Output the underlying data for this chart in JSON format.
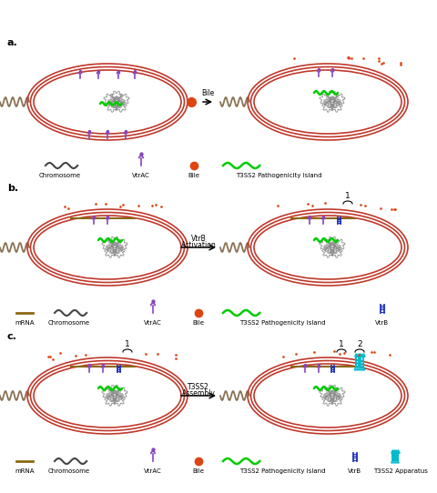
{
  "bg_color": "#ffffff",
  "cell_color": "#c0392b",
  "flagellum_color": "#8B7355",
  "chromosome_color": "#888888",
  "t3ss2_pi_color": "#00cc00",
  "vtrac_color": "#8844bb",
  "bile_color": "#dd4411",
  "mrna_color": "#8B6914",
  "vtrb_color": "#2233bb",
  "apparatus_color": "#00bbcc",
  "dot_color": "#dd4411",
  "panel_labels": [
    "a.",
    "b.",
    "c."
  ],
  "figsize": [
    4.8,
    5.42
  ],
  "dpi": 100
}
